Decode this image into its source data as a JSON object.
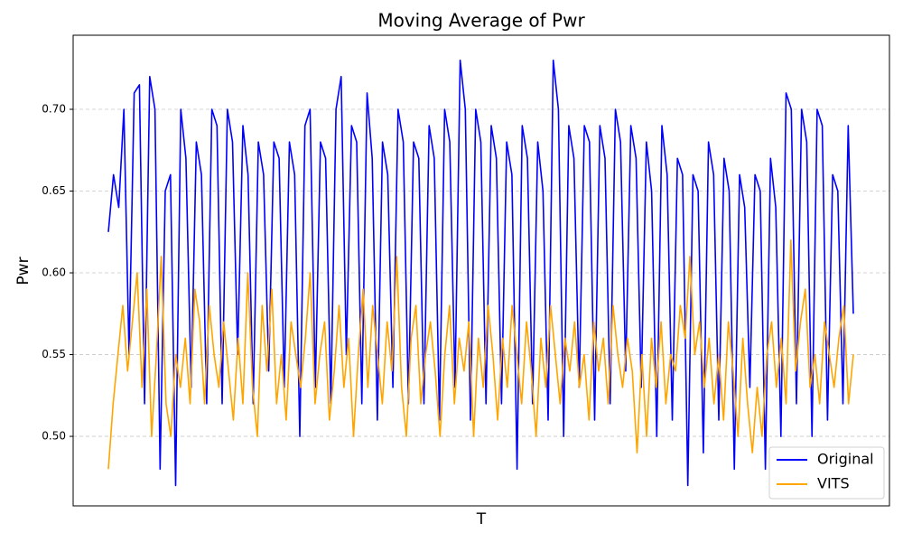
{
  "chart_data": {
    "type": "line",
    "title": "Moving Average of Pwr",
    "x_label": "T",
    "y_label": "Pwr",
    "ylim": [
      0.4575,
      0.7453
    ],
    "yticks": [
      {
        "value": 0.5,
        "label": "0.50"
      },
      {
        "value": 0.55,
        "label": "0.55"
      },
      {
        "value": 0.6,
        "label": "0.60"
      },
      {
        "value": 0.65,
        "label": "0.65"
      },
      {
        "value": 0.7,
        "label": "0.70"
      }
    ],
    "grid": true,
    "legend": "lower right",
    "series": [
      {
        "name": "Original",
        "color": "#0000ff",
        "values": [
          0.625,
          0.66,
          0.64,
          0.7,
          0.55,
          0.71,
          0.715,
          0.52,
          0.72,
          0.7,
          0.48,
          0.65,
          0.66,
          0.47,
          0.7,
          0.67,
          0.53,
          0.68,
          0.66,
          0.52,
          0.7,
          0.69,
          0.52,
          0.7,
          0.68,
          0.55,
          0.69,
          0.66,
          0.52,
          0.68,
          0.66,
          0.54,
          0.68,
          0.67,
          0.53,
          0.68,
          0.66,
          0.5,
          0.69,
          0.7,
          0.53,
          0.68,
          0.67,
          0.52,
          0.7,
          0.72,
          0.55,
          0.69,
          0.68,
          0.52,
          0.71,
          0.67,
          0.51,
          0.68,
          0.66,
          0.53,
          0.7,
          0.68,
          0.52,
          0.68,
          0.67,
          0.52,
          0.69,
          0.67,
          0.51,
          0.7,
          0.68,
          0.53,
          0.73,
          0.7,
          0.51,
          0.7,
          0.68,
          0.52,
          0.69,
          0.67,
          0.52,
          0.68,
          0.66,
          0.48,
          0.69,
          0.67,
          0.52,
          0.68,
          0.65,
          0.51,
          0.73,
          0.7,
          0.5,
          0.69,
          0.67,
          0.53,
          0.69,
          0.68,
          0.51,
          0.69,
          0.67,
          0.52,
          0.7,
          0.68,
          0.54,
          0.69,
          0.67,
          0.53,
          0.68,
          0.65,
          0.5,
          0.69,
          0.66,
          0.51,
          0.67,
          0.66,
          0.47,
          0.66,
          0.65,
          0.49,
          0.68,
          0.66,
          0.51,
          0.67,
          0.65,
          0.48,
          0.66,
          0.64,
          0.53,
          0.66,
          0.65,
          0.48,
          0.67,
          0.64,
          0.5,
          0.71,
          0.7,
          0.52,
          0.7,
          0.68,
          0.5,
          0.7,
          0.69,
          0.51,
          0.66,
          0.65,
          0.52,
          0.69,
          0.575
        ]
      },
      {
        "name": "VITS",
        "color": "#ffa500",
        "values": [
          0.48,
          0.52,
          0.55,
          0.58,
          0.54,
          0.57,
          0.6,
          0.53,
          0.59,
          0.5,
          0.55,
          0.61,
          0.52,
          0.5,
          0.55,
          0.53,
          0.56,
          0.52,
          0.59,
          0.57,
          0.52,
          0.58,
          0.55,
          0.53,
          0.57,
          0.54,
          0.51,
          0.56,
          0.52,
          0.6,
          0.53,
          0.5,
          0.58,
          0.54,
          0.59,
          0.52,
          0.55,
          0.51,
          0.57,
          0.55,
          0.53,
          0.56,
          0.6,
          0.52,
          0.55,
          0.57,
          0.51,
          0.54,
          0.58,
          0.53,
          0.56,
          0.5,
          0.55,
          0.59,
          0.53,
          0.58,
          0.55,
          0.52,
          0.57,
          0.54,
          0.61,
          0.53,
          0.5,
          0.56,
          0.58,
          0.52,
          0.55,
          0.57,
          0.54,
          0.5,
          0.55,
          0.58,
          0.52,
          0.56,
          0.54,
          0.57,
          0.5,
          0.56,
          0.53,
          0.58,
          0.55,
          0.51,
          0.56,
          0.53,
          0.58,
          0.55,
          0.52,
          0.57,
          0.54,
          0.5,
          0.56,
          0.53,
          0.58,
          0.55,
          0.52,
          0.56,
          0.54,
          0.57,
          0.53,
          0.55,
          0.51,
          0.57,
          0.54,
          0.56,
          0.52,
          0.58,
          0.55,
          0.53,
          0.56,
          0.54,
          0.49,
          0.55,
          0.5,
          0.56,
          0.53,
          0.57,
          0.52,
          0.55,
          0.54,
          0.58,
          0.56,
          0.61,
          0.55,
          0.57,
          0.53,
          0.56,
          0.52,
          0.55,
          0.51,
          0.57,
          0.54,
          0.5,
          0.56,
          0.52,
          0.49,
          0.53,
          0.5,
          0.55,
          0.57,
          0.53,
          0.56,
          0.52,
          0.62,
          0.54,
          0.57,
          0.59,
          0.53,
          0.55,
          0.52,
          0.57,
          0.55,
          0.53,
          0.56,
          0.58,
          0.52,
          0.55
        ]
      }
    ]
  }
}
